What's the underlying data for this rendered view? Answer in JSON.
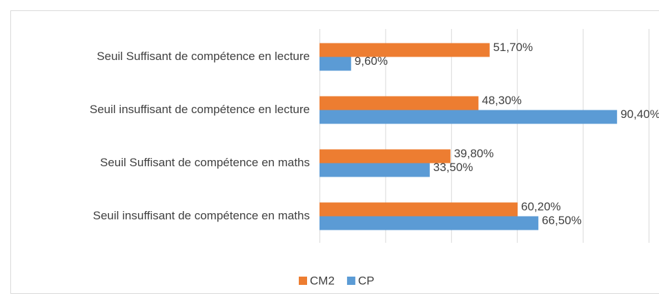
{
  "chart_data": {
    "type": "bar",
    "orientation": "horizontal",
    "categories": [
      "Seuil Suffisant de compétence en lecture",
      "Seuil insuffisant de compétence en lecture",
      "Seuil Suffisant de compétence en maths",
      "Seuil insuffisant de compétence en maths"
    ],
    "series": [
      {
        "name": "CM2",
        "color": "#ed7d31",
        "values": [
          51.7,
          48.3,
          39.8,
          60.2
        ],
        "value_labels": [
          "51,70%",
          "48,30%",
          "39,80%",
          "60,20%"
        ]
      },
      {
        "name": "CP",
        "color": "#5b9bd5",
        "values": [
          9.6,
          90.4,
          33.5,
          66.5
        ],
        "value_labels": [
          "9,60%",
          "90,40%",
          "33,50%",
          "66,50%"
        ]
      }
    ],
    "xlim": [
      0,
      100
    ],
    "xticks": [
      0,
      20,
      40,
      60,
      80,
      100
    ],
    "grid": true,
    "legend": "bottom"
  }
}
